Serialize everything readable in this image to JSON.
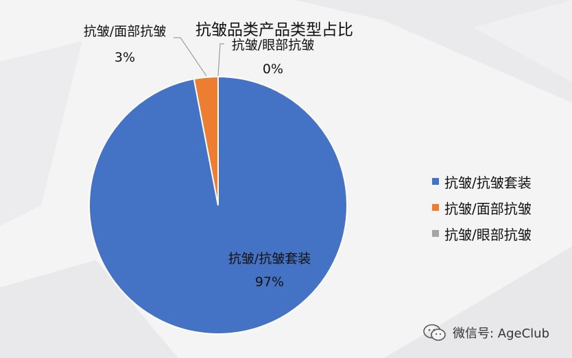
{
  "chart_data": {
    "type": "pie",
    "title": "抗皱品类产品类型占比",
    "categories": [
      "抗皱/抗皱套装",
      "抗皱/面部抗皱",
      "抗皱/眼部抗皱"
    ],
    "values": [
      97,
      3,
      0
    ],
    "value_labels": [
      "97%",
      "3%",
      "0%"
    ],
    "colors": [
      "#4472c4",
      "#ed7d31",
      "#a5a5a5"
    ],
    "legend": "right",
    "grid": false
  },
  "watermark": {
    "icon": "wechat-icon",
    "text": "微信号: AgeClub"
  }
}
